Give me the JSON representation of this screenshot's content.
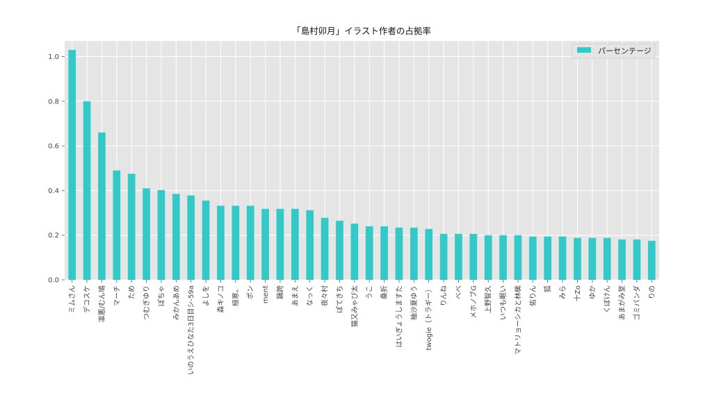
{
  "chart_data": {
    "type": "bar",
    "title": "「島村卯月」イラスト作者の占拠率",
    "xlabel": "",
    "ylabel": "",
    "ylim": [
      0,
      1.07
    ],
    "yticks": [
      0.0,
      0.2,
      0.4,
      0.6,
      0.8,
      1.0
    ],
    "ytick_labels": [
      "0.0",
      "0.2",
      "0.4",
      "0.6",
      "0.8",
      "1.0"
    ],
    "grid": true,
    "legend_position": "top-right",
    "bar_color": "#33c9c9",
    "background_color": "#e5e5e5",
    "categories": [
      "ミムさん",
      "デコスケ",
      "凛悪/むん鳩",
      "マーチ",
      "ため",
      "つむぎゆり",
      "ぽちゃ",
      "みかんあめ",
      "いのうえひなた3日目シ-59a",
      "よしを",
      "森キノコ",
      "極寒。",
      "ポン",
      "ment",
      "踊跨",
      "あまえ",
      "なっく",
      "夜々村",
      "ぽてきち",
      "猫又みゃぴ太",
      "うこ",
      "桑折",
      "はいぎょうしますた",
      "柚沙夏ゆう",
      "twogie（トラギー）",
      "りんね",
      "べべ",
      "メホノブG",
      "上野智久",
      "いつも眠い",
      "マトリョーシカと林檎",
      "佑りん",
      "狐",
      "みら",
      "十Zo",
      "ゆか",
      "くぼけん",
      "あまがみ堂",
      "ゴミパンダ",
      "りの"
    ],
    "series": [
      {
        "name": "パーセンテージ",
        "values": [
          1.03,
          0.8,
          0.66,
          0.49,
          0.475,
          0.41,
          0.402,
          0.385,
          0.378,
          0.355,
          0.332,
          0.332,
          0.332,
          0.318,
          0.318,
          0.318,
          0.312,
          0.278,
          0.265,
          0.252,
          0.24,
          0.24,
          0.234,
          0.234,
          0.228,
          0.206,
          0.206,
          0.206,
          0.2,
          0.2,
          0.2,
          0.194,
          0.194,
          0.194,
          0.188,
          0.188,
          0.188,
          0.181,
          0.181,
          0.175
        ]
      }
    ]
  }
}
